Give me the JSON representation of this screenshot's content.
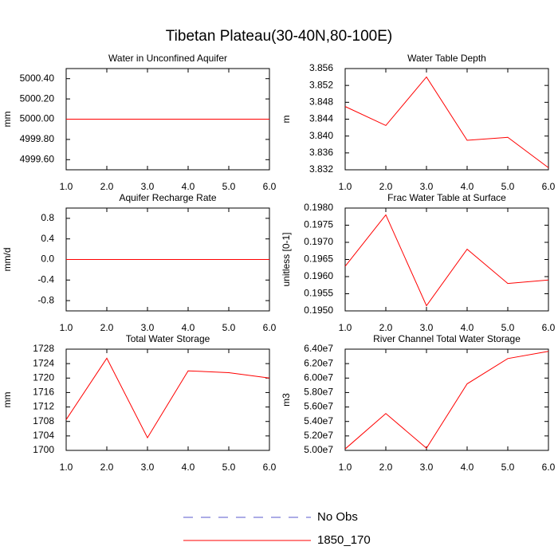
{
  "title": "Tibetan Plateau(30-40N,80-100E)",
  "legend": [
    {
      "name": "No Obs",
      "color": "#5a5acd",
      "dash": true
    },
    {
      "name": "1850_170",
      "color": "#ff0000",
      "dash": false
    }
  ],
  "chart_data": [
    {
      "type": "line",
      "title": "Water in Unconfined Aquifer",
      "ylabel": "mm",
      "x": [
        1,
        2,
        3,
        4,
        5,
        6
      ],
      "series": [
        {
          "color": "#ff0000",
          "values": [
            5000,
            5000,
            5000,
            5000,
            5000,
            5000
          ]
        }
      ],
      "xlim": [
        1,
        6
      ],
      "xticks": [
        {
          "value": 1,
          "label": "1.0"
        },
        {
          "value": 2,
          "label": "2.0"
        },
        {
          "value": 3,
          "label": "3.0"
        },
        {
          "value": 4,
          "label": "4.0"
        },
        {
          "value": 5,
          "label": "5.0"
        },
        {
          "value": 6,
          "label": "6.0"
        }
      ],
      "ylim": [
        4999.5,
        5000.5
      ],
      "yticks": [
        {
          "value": 4999.6,
          "label": "4999.60"
        },
        {
          "value": 4999.8,
          "label": "4999.80"
        },
        {
          "value": 5000,
          "label": "5000.00"
        },
        {
          "value": 5000.2,
          "label": "5000.20"
        },
        {
          "value": 5000.4,
          "label": "5000.40"
        }
      ]
    },
    {
      "type": "line",
      "title": "Water Table Depth",
      "ylabel": "m",
      "x": [
        1,
        2,
        3,
        4,
        5,
        6
      ],
      "series": [
        {
          "color": "#ff0000",
          "values": [
            3.847,
            3.8425,
            3.854,
            3.839,
            3.8397,
            3.8325
          ]
        }
      ],
      "xlim": [
        1,
        6
      ],
      "xticks": [
        {
          "value": 1,
          "label": "1.0"
        },
        {
          "value": 2,
          "label": "2.0"
        },
        {
          "value": 3,
          "label": "3.0"
        },
        {
          "value": 4,
          "label": "4.0"
        },
        {
          "value": 5,
          "label": "5.0"
        },
        {
          "value": 6,
          "label": "6.0"
        }
      ],
      "ylim": [
        3.832,
        3.856
      ],
      "yticks": [
        3.832,
        3.836,
        {
          "value": 3.84,
          "label": "3.840"
        },
        3.844,
        3.848,
        3.852,
        3.856
      ]
    },
    {
      "type": "line",
      "title": "Aquifer Recharge Rate",
      "ylabel": "mm/d",
      "x": [
        1,
        2,
        3,
        4,
        5,
        6
      ],
      "series": [
        {
          "color": "#ff0000",
          "values": [
            0,
            0,
            0,
            0,
            0,
            0
          ]
        }
      ],
      "xlim": [
        1,
        6
      ],
      "xticks": [
        {
          "value": 1,
          "label": "1.0"
        },
        {
          "value": 2,
          "label": "2.0"
        },
        {
          "value": 3,
          "label": "3.0"
        },
        {
          "value": 4,
          "label": "4.0"
        },
        {
          "value": 5,
          "label": "5.0"
        },
        {
          "value": 6,
          "label": "6.0"
        }
      ],
      "ylim": [
        -1,
        1
      ],
      "yticks": [
        -0.8,
        -0.4,
        {
          "value": 0,
          "label": "0.0"
        },
        0.4,
        0.8
      ]
    },
    {
      "type": "line",
      "title": "Frac Water Table at Surface",
      "ylabel": "unitless [0-1]",
      "x": [
        1,
        2,
        3,
        4,
        5,
        6
      ],
      "series": [
        {
          "color": "#ff0000",
          "values": [
            0.1963,
            0.1978,
            0.19515,
            0.1968,
            0.1958,
            0.1959
          ]
        }
      ],
      "xlim": [
        1,
        6
      ],
      "xticks": [
        {
          "value": 1,
          "label": "1.0"
        },
        {
          "value": 2,
          "label": "2.0"
        },
        {
          "value": 3,
          "label": "3.0"
        },
        {
          "value": 4,
          "label": "4.0"
        },
        {
          "value": 5,
          "label": "5.0"
        },
        {
          "value": 6,
          "label": "6.0"
        }
      ],
      "ylim": [
        0.195,
        0.198
      ],
      "yticks": [
        {
          "value": 0.195,
          "label": "0.1950"
        },
        0.1955,
        {
          "value": 0.196,
          "label": "0.1960"
        },
        0.1965,
        {
          "value": 0.197,
          "label": "0.1970"
        },
        0.1975,
        {
          "value": 0.198,
          "label": "0.1980"
        }
      ]
    },
    {
      "type": "line",
      "title": "Total Water Storage",
      "ylabel": "mm",
      "x": [
        1,
        2,
        3,
        4,
        5,
        6
      ],
      "series": [
        {
          "color": "#ff0000",
          "values": [
            1708.5,
            1725.5,
            1703.5,
            1722,
            1721.5,
            1720
          ]
        }
      ],
      "xlim": [
        1,
        6
      ],
      "xticks": [
        {
          "value": 1,
          "label": "1.0"
        },
        {
          "value": 2,
          "label": "2.0"
        },
        {
          "value": 3,
          "label": "3.0"
        },
        {
          "value": 4,
          "label": "4.0"
        },
        {
          "value": 5,
          "label": "5.0"
        },
        {
          "value": 6,
          "label": "6.0"
        }
      ],
      "ylim": [
        1700,
        1728
      ],
      "yticks": [
        1700,
        1704,
        1708,
        1712,
        1716,
        1720,
        1724,
        1728
      ]
    },
    {
      "type": "line",
      "title": "River Channel Total Water Storage",
      "ylabel": "m3",
      "x": [
        1,
        2,
        3,
        4,
        5,
        6
      ],
      "series": [
        {
          "color": "#ff0000",
          "values": [
            50200000,
            55100000,
            50300000,
            59200000,
            62700000,
            63700000
          ]
        }
      ],
      "xlim": [
        1,
        6
      ],
      "xticks": [
        {
          "value": 1,
          "label": "1.0"
        },
        {
          "value": 2,
          "label": "2.0"
        },
        {
          "value": 3,
          "label": "3.0"
        },
        {
          "value": 4,
          "label": "4.0"
        },
        {
          "value": 5,
          "label": "5.0"
        },
        {
          "value": 6,
          "label": "6.0"
        }
      ],
      "ylim": [
        50000000,
        64000000
      ],
      "yticks": [
        {
          "value": 50000000,
          "label": "5.00e7"
        },
        {
          "value": 52000000,
          "label": "5.20e7"
        },
        {
          "value": 54000000,
          "label": "5.40e7"
        },
        {
          "value": 56000000,
          "label": "5.60e7"
        },
        {
          "value": 58000000,
          "label": "5.80e7"
        },
        {
          "value": 60000000,
          "label": "6.00e7"
        },
        {
          "value": 62000000,
          "label": "6.20e7"
        },
        {
          "value": 64000000,
          "label": "6.40e7"
        }
      ]
    }
  ]
}
